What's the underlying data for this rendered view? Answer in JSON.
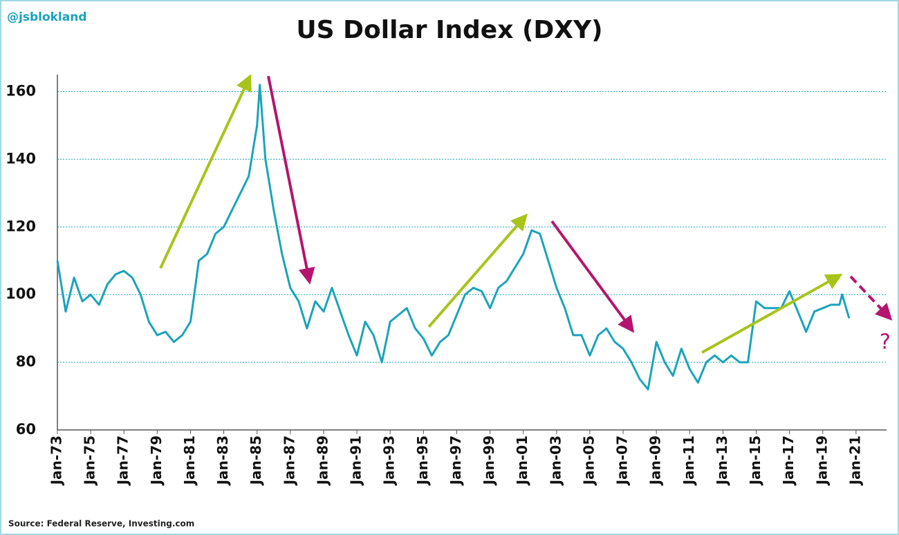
{
  "chart_data": {
    "type": "line",
    "title": "US Dollar Index (DXY)",
    "watermark": "@jsblokland",
    "source": "Source: Federal Reserve, Investing.com",
    "annotations": [
      "?"
    ],
    "color": "#1aa3bc",
    "grid": true,
    "x": [
      "1973-01",
      "1973-07",
      "1974-01",
      "1974-07",
      "1975-01",
      "1975-07",
      "1976-01",
      "1976-07",
      "1977-01",
      "1977-07",
      "1978-01",
      "1978-07",
      "1979-01",
      "1979-07",
      "1980-01",
      "1980-07",
      "1981-01",
      "1981-07",
      "1982-01",
      "1982-07",
      "1983-01",
      "1983-07",
      "1984-01",
      "1984-07",
      "1985-01",
      "1985-03",
      "1985-07",
      "1986-01",
      "1986-07",
      "1987-01",
      "1987-07",
      "1988-01",
      "1988-07",
      "1989-01",
      "1989-07",
      "1990-01",
      "1990-07",
      "1991-01",
      "1991-07",
      "1992-01",
      "1992-07",
      "1993-01",
      "1993-07",
      "1994-01",
      "1994-07",
      "1995-01",
      "1995-07",
      "1996-01",
      "1996-07",
      "1997-01",
      "1997-07",
      "1998-01",
      "1998-07",
      "1999-01",
      "1999-07",
      "2000-01",
      "2000-07",
      "2001-01",
      "2001-07",
      "2002-01",
      "2002-07",
      "2003-01",
      "2003-07",
      "2004-01",
      "2004-07",
      "2005-01",
      "2005-07",
      "2006-01",
      "2006-07",
      "2007-01",
      "2007-07",
      "2008-01",
      "2008-07",
      "2009-01",
      "2009-07",
      "2010-01",
      "2010-07",
      "2011-01",
      "2011-07",
      "2012-01",
      "2012-07",
      "2013-01",
      "2013-07",
      "2014-01",
      "2014-07",
      "2015-01",
      "2015-07",
      "2016-01",
      "2016-07",
      "2017-01",
      "2017-07",
      "2018-01",
      "2018-07",
      "2019-01",
      "2019-07",
      "2020-01",
      "2020-03",
      "2020-08"
    ],
    "values": [
      110,
      95,
      105,
      98,
      100,
      97,
      103,
      106,
      107,
      105,
      100,
      92,
      88,
      89,
      86,
      88,
      92,
      110,
      112,
      118,
      120,
      125,
      130,
      135,
      150,
      162,
      140,
      125,
      112,
      102,
      98,
      90,
      98,
      95,
      102,
      95,
      88,
      82,
      92,
      88,
      80,
      92,
      94,
      96,
      90,
      87,
      82,
      86,
      88,
      94,
      100,
      102,
      101,
      96,
      102,
      104,
      108,
      112,
      119,
      118,
      110,
      102,
      96,
      88,
      88,
      82,
      88,
      90,
      86,
      84,
      80,
      75,
      72,
      86,
      80,
      76,
      84,
      78,
      74,
      80,
      82,
      80,
      82,
      80,
      80,
      98,
      96,
      96,
      96,
      101,
      95,
      89,
      95,
      96,
      97,
      97,
      100,
      93
    ],
    "xlim": [
      "1973-01",
      "2022-11"
    ],
    "xticks": [
      {
        "value": "1973-01",
        "label": "Jan-73"
      },
      {
        "value": "1975-01",
        "label": "Jan-75"
      },
      {
        "value": "1977-01",
        "label": "Jan-77"
      },
      {
        "value": "1979-01",
        "label": "Jan-79"
      },
      {
        "value": "1981-01",
        "label": "Jan-81"
      },
      {
        "value": "1983-01",
        "label": "Jan-83"
      },
      {
        "value": "1985-01",
        "label": "Jan-85"
      },
      {
        "value": "1987-01",
        "label": "Jan-87"
      },
      {
        "value": "1989-01",
        "label": "Jan-89"
      },
      {
        "value": "1991-01",
        "label": "Jan-91"
      },
      {
        "value": "1993-01",
        "label": "Jan-93"
      },
      {
        "value": "1995-01",
        "label": "Jan-95"
      },
      {
        "value": "1997-01",
        "label": "Jan-97"
      },
      {
        "value": "1999-01",
        "label": "Jan-99"
      },
      {
        "value": "2001-01",
        "label": "Jan-01"
      },
      {
        "value": "2003-01",
        "label": "Jan-03"
      },
      {
        "value": "2005-01",
        "label": "Jan-05"
      },
      {
        "value": "2007-01",
        "label": "Jan-07"
      },
      {
        "value": "2009-01",
        "label": "Jan-09"
      },
      {
        "value": "2011-01",
        "label": "Jan-11"
      },
      {
        "value": "2013-01",
        "label": "Jan-13"
      },
      {
        "value": "2015-01",
        "label": "Jan-15"
      },
      {
        "value": "2017-01",
        "label": "Jan-17"
      },
      {
        "value": "2019-01",
        "label": "Jan-19"
      },
      {
        "value": "2021-01",
        "label": "Jan-21"
      }
    ],
    "ylim": [
      60,
      165
    ],
    "yticks": [
      60,
      80,
      100,
      120,
      140,
      160
    ]
  }
}
